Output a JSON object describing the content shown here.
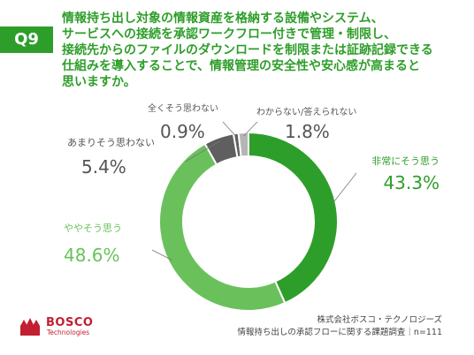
{
  "question": {
    "number": "Q9",
    "text": "情報持ち出し対象の情報資産を格納する設備やシステム、\nサービスへの接続を承認ワークフロー付きで管理・制限し、\n接続先からのファイルのダウンロードを制限または証跡記録できる\n仕組みを導入することで、情報管理の安全性や安心感が高まると\n思いますか。"
  },
  "colors": {
    "accent": "#2e9e2a",
    "dark_green": "#2e9e2a",
    "light_green": "#6ac15c",
    "dark_gray": "#5f5f5f",
    "light_gray": "#b5b5b5",
    "label_gray": "#555555"
  },
  "chart_data": {
    "type": "pie",
    "style": "donut",
    "categories": [
      "非常にそう思う",
      "ややそう思う",
      "あまりそう思わない",
      "全くそう思わない",
      "わからない/答えられない"
    ],
    "values": [
      43.3,
      48.6,
      5.4,
      0.9,
      1.8
    ],
    "value_labels": [
      "43.3%",
      "48.6%",
      "5.4%",
      "0.9%",
      "1.8%"
    ],
    "colors": [
      "#2e9e2a",
      "#6ac15c",
      "#5f5f5f",
      "#5f5f5f",
      "#b5b5b5"
    ]
  },
  "footer": {
    "company": "株式会社ボスコ・テクノロジーズ",
    "survey": "情報持ち出しの承認フローに関する課題調査｜n=111"
  },
  "logo": {
    "name": "BOSCO",
    "sub": "Technologies"
  }
}
